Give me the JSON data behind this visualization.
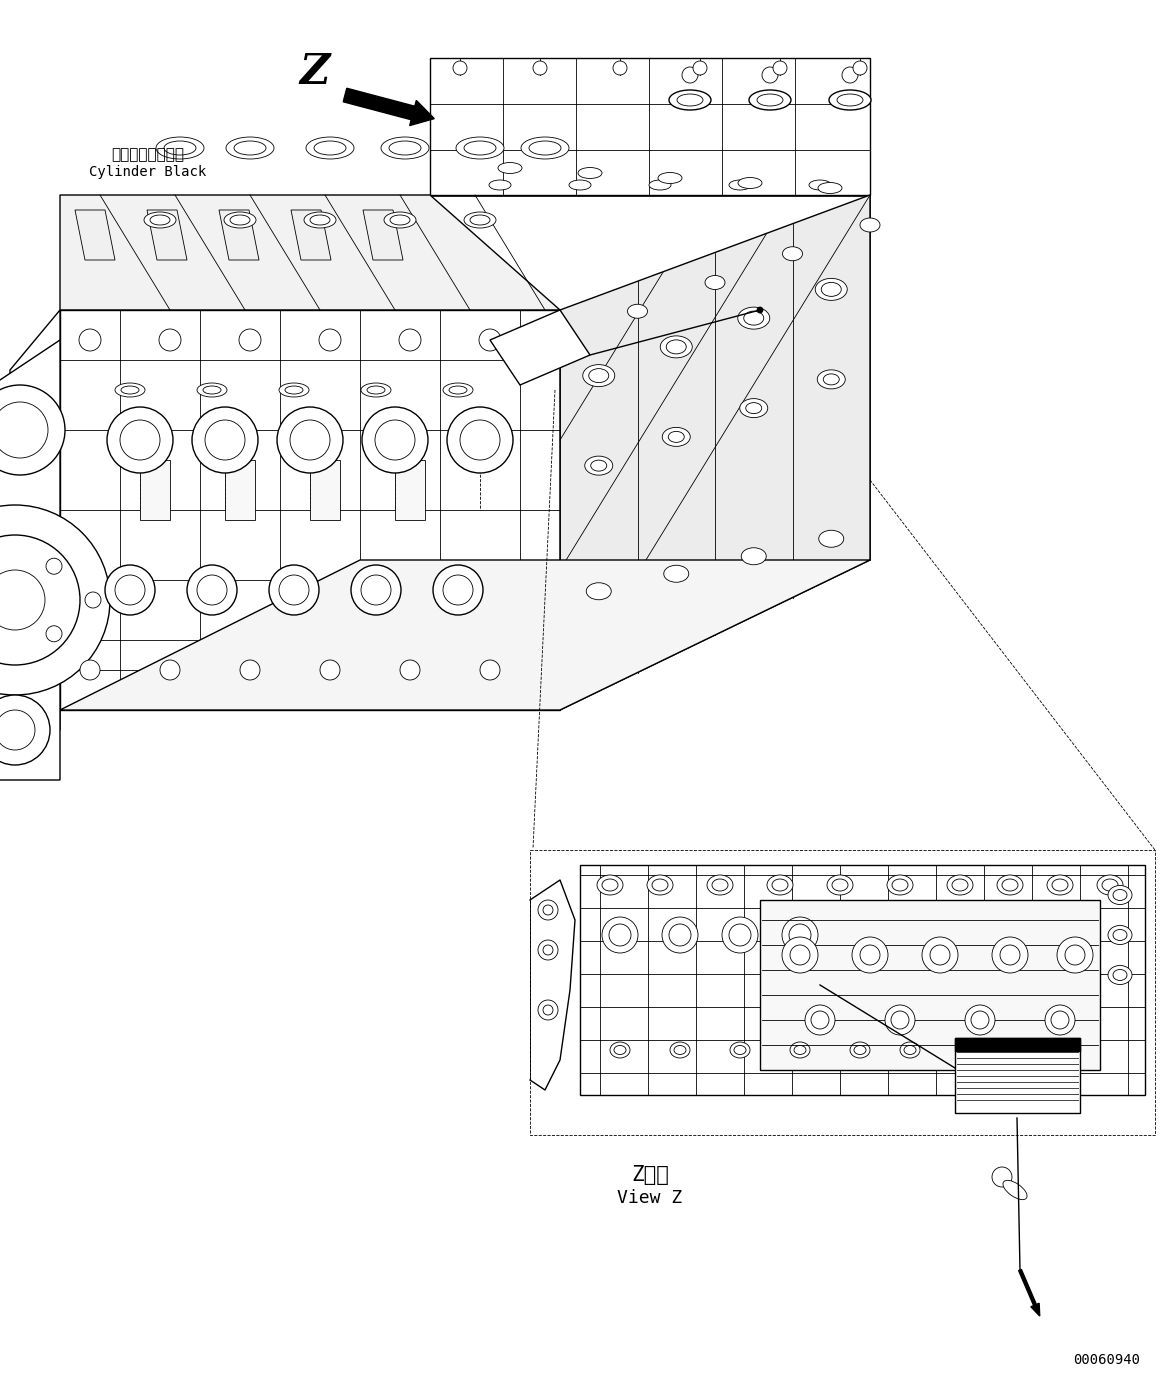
{
  "background_color": "#ffffff",
  "line_color": "#000000",
  "fig_width": 11.63,
  "fig_height": 13.83,
  "dpi": 100,
  "z_label": "Z",
  "z_view_label_jp": "Z　視",
  "z_view_label_en": "View Z",
  "cylinder_label_jp": "シリンダブロック",
  "cylinder_label_en": "Cylinder Black",
  "part_number": "00060940"
}
